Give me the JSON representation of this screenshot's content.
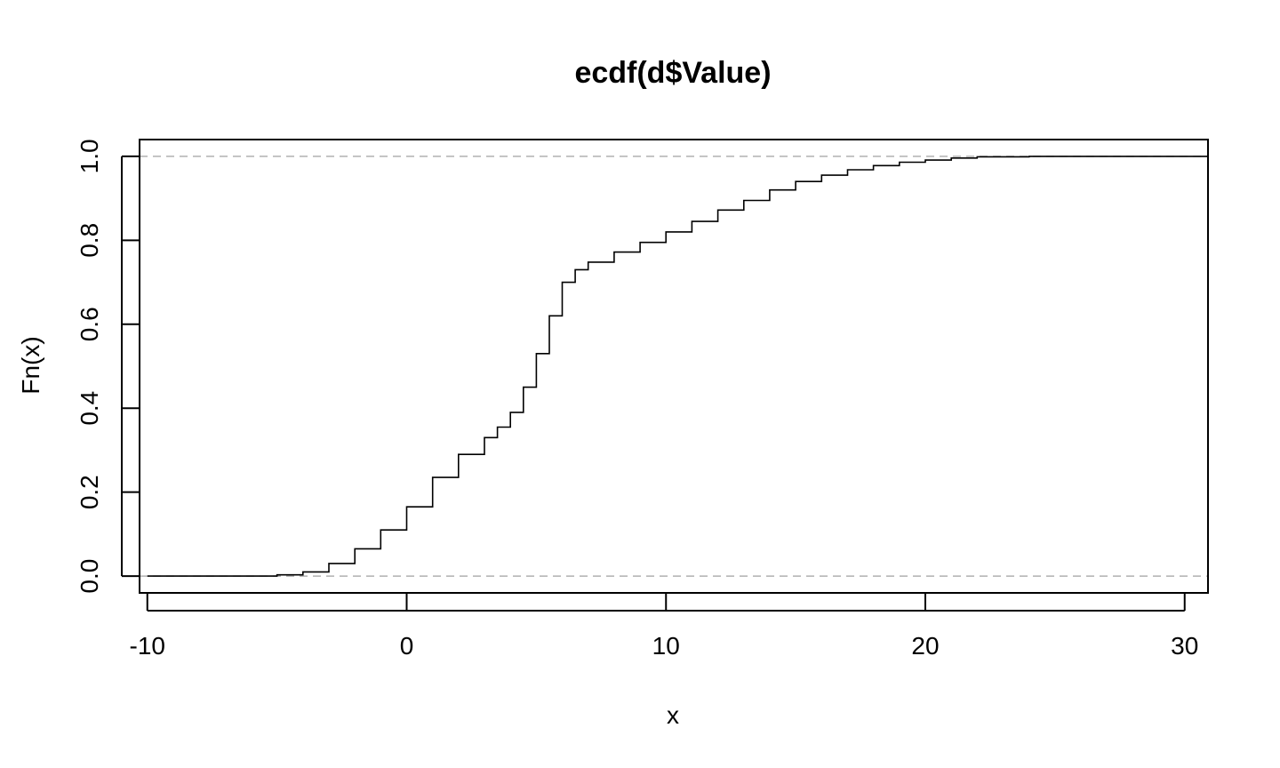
{
  "chart_data": {
    "type": "line",
    "title": "ecdf(d$Value)",
    "xlabel": "x",
    "ylabel": "Fn(x)",
    "xlim": [
      -10.3,
      30.9
    ],
    "ylim": [
      -0.04,
      1.04
    ],
    "x_ticks": [
      -10,
      0,
      10,
      20,
      30
    ],
    "x_tick_labels": [
      "-10",
      "0",
      "10",
      "20",
      "30"
    ],
    "y_ticks": [
      0.0,
      0.2,
      0.4,
      0.6,
      0.8,
      1.0
    ],
    "y_tick_labels": [
      "0.0",
      "0.2",
      "0.4",
      "0.6",
      "0.8",
      "1.0"
    ],
    "reference_lines": [
      {
        "y": 0.0,
        "style": "dashed",
        "color": "#b0b0b0"
      },
      {
        "y": 1.0,
        "style": "dashed",
        "color": "#b0b0b0"
      }
    ],
    "grid": false,
    "series": [
      {
        "color": "#000000",
        "x": [
          -10.0,
          -7,
          -5,
          -4,
          -3,
          -2,
          -1,
          0,
          1,
          2,
          3,
          3.5,
          4,
          4.5,
          5,
          5.5,
          6,
          6.5,
          7,
          8,
          9,
          10,
          11,
          12,
          13,
          14,
          15,
          16,
          17,
          18,
          19,
          20,
          21,
          22,
          24,
          30.9
        ],
        "y": [
          0.0,
          0.0,
          0.003,
          0.01,
          0.03,
          0.065,
          0.11,
          0.165,
          0.235,
          0.29,
          0.33,
          0.355,
          0.39,
          0.45,
          0.53,
          0.62,
          0.7,
          0.73,
          0.748,
          0.772,
          0.795,
          0.82,
          0.845,
          0.872,
          0.895,
          0.92,
          0.94,
          0.955,
          0.968,
          0.978,
          0.986,
          0.991,
          0.996,
          0.999,
          1.0,
          1.0
        ]
      }
    ]
  }
}
